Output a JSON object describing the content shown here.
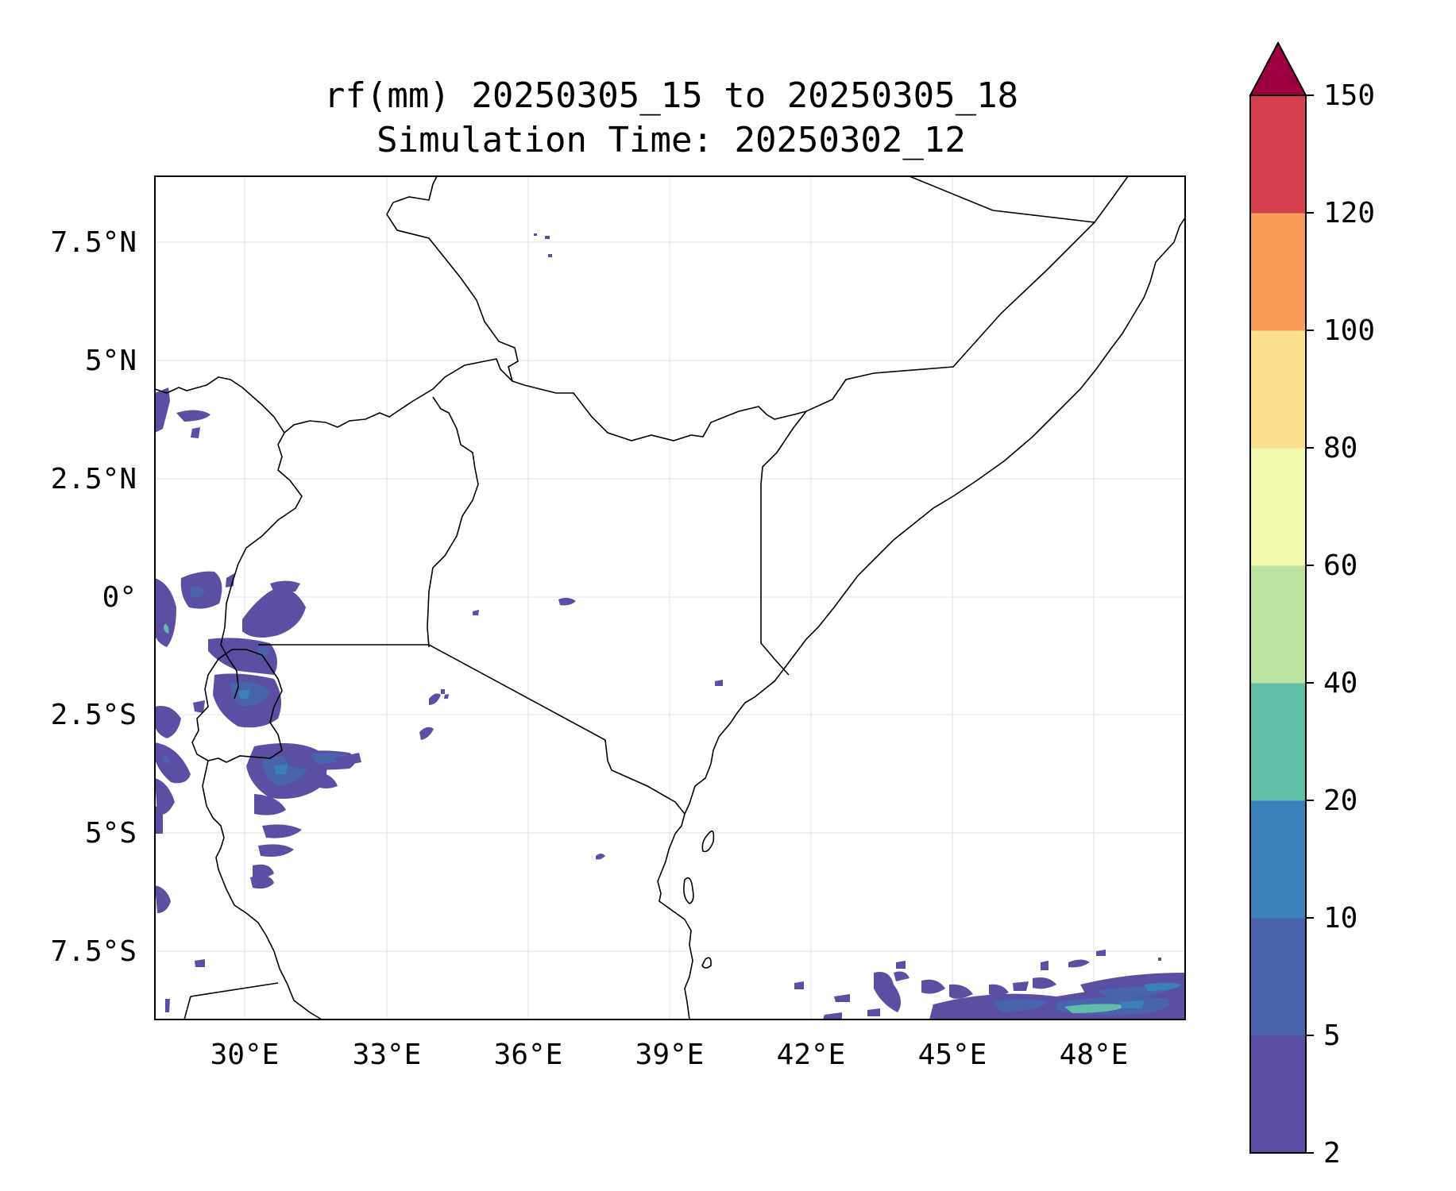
{
  "title": {
    "line1": "rf(mm) 20250305_15 to 20250305_18",
    "line2": "Simulation Time: 20250302_12"
  },
  "map": {
    "lon_ticks": [
      "30°E",
      "33°E",
      "36°E",
      "39°E",
      "42°E",
      "45°E",
      "48°E"
    ],
    "lat_ticks": [
      "7.5°N",
      "5°N",
      "2.5°N",
      "0°",
      "2.5°S",
      "5°S",
      "7.5°S"
    ],
    "gridlines": true
  },
  "colorbar": {
    "extend": "max",
    "levels": [
      "2",
      "5",
      "10",
      "20",
      "40",
      "60",
      "80",
      "100",
      "120",
      "150"
    ],
    "colors": [
      "#5a4fa2",
      "#4a63ad",
      "#3a80bb",
      "#62bda8",
      "#bde3a0",
      "#f2f8ad",
      "#fbdf8c",
      "#f89c59",
      "#d53e4f",
      "#9e0142"
    ]
  }
}
